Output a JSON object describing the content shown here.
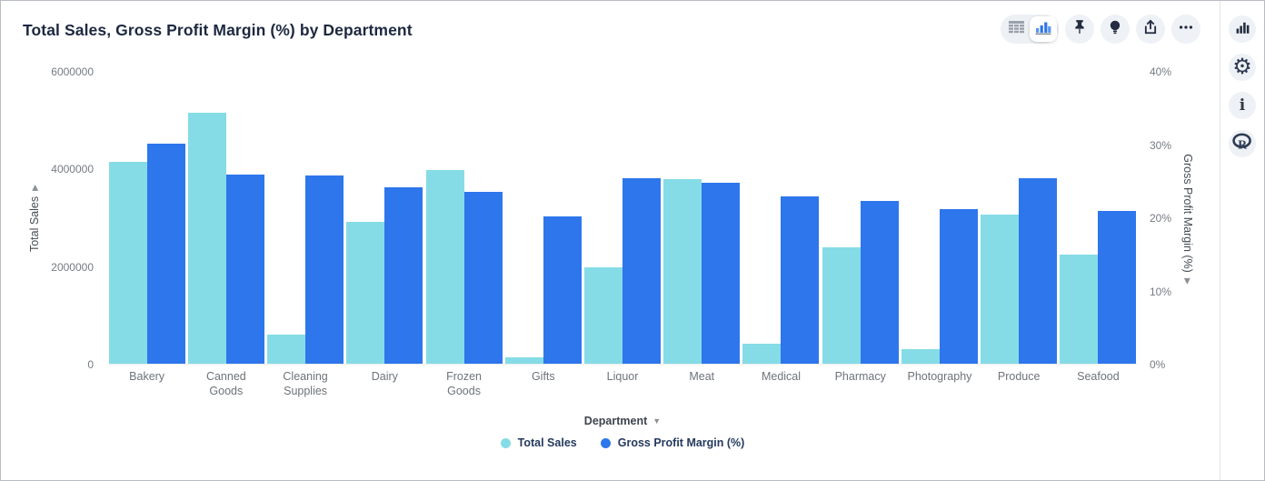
{
  "header": {
    "title": "Total Sales, Gross Profit Margin (%) by Department"
  },
  "toolbar": {
    "icons": [
      "table-view-icon",
      "chart-view-icon",
      "pin-icon",
      "lightbulb-icon",
      "share-icon",
      "ellipsis-icon"
    ],
    "selected_view": "chart"
  },
  "sidebar": {
    "icons": [
      "chart-config-icon",
      "settings-gear-icon",
      "info-icon",
      "r-analysis-icon"
    ]
  },
  "colors": {
    "total_sales": "#85dce6",
    "gross_profit_margin": "#2e76ec",
    "title_text": "#1d2840",
    "tick_text": "#767b82",
    "legend_text": "#243a5e",
    "icon_dark": "#232c40",
    "button_bg": "#eef1f5"
  },
  "chart_data": {
    "type": "bar",
    "title": "Total Sales, Gross Profit Margin (%) by Department",
    "categories": [
      "Bakery",
      "Canned Goods",
      "Cleaning Supplies",
      "Dairy",
      "Frozen Goods",
      "Gifts",
      "Liquor",
      "Meat",
      "Medical",
      "Pharmacy",
      "Photography",
      "Produce",
      "Seafood"
    ],
    "series": [
      {
        "name": "Total Sales",
        "axis": "left",
        "color": "#85dce6",
        "values": [
          4140000,
          5150000,
          600000,
          2900000,
          3960000,
          140000,
          1970000,
          3790000,
          410000,
          2390000,
          290000,
          3050000,
          2240000
        ]
      },
      {
        "name": "Gross Profit Margin (%)",
        "axis": "right",
        "color": "#2e76ec",
        "values": [
          30.1,
          25.8,
          25.7,
          24.1,
          23.5,
          20.1,
          25.4,
          24.7,
          22.9,
          22.2,
          21.1,
          25.3,
          20.9
        ]
      }
    ],
    "left_axis": {
      "label": "Total Sales",
      "max": 6000000,
      "ticks": [
        "0",
        "2000000",
        "4000000",
        "6000000"
      ]
    },
    "right_axis": {
      "label": "Gross Profit Margin (%)",
      "max": 40,
      "ticks": [
        "0%",
        "10%",
        "20%",
        "30%",
        "40%"
      ]
    },
    "xlabel": "Department",
    "legend": [
      "Total Sales",
      "Gross Profit Margin (%)"
    ],
    "legend_position": "bottom",
    "grid": false
  }
}
